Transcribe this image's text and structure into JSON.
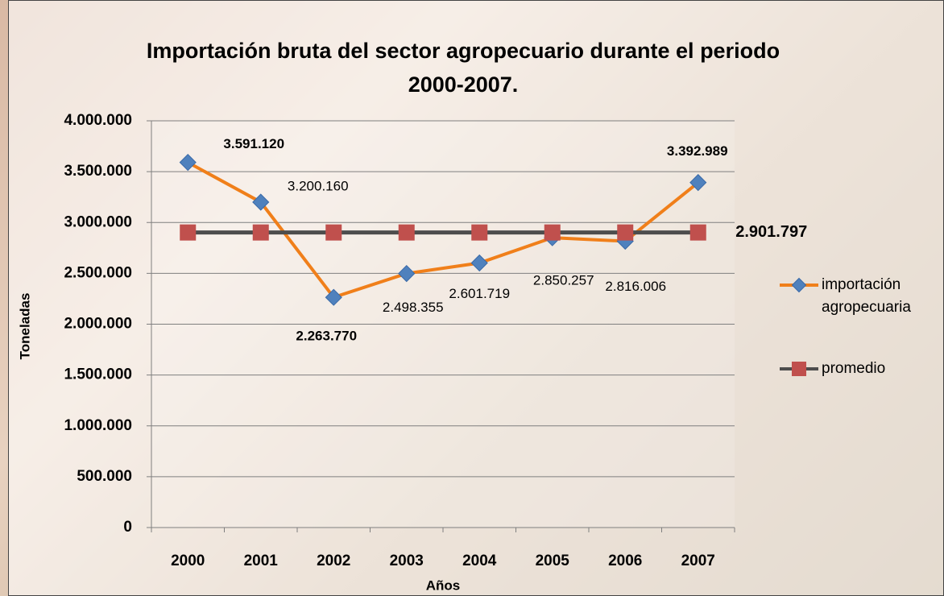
{
  "chart_data": {
    "type": "line",
    "title": "Importación bruta del sector agropecuario durante el periodo 2000-2007.",
    "x_label": "Años",
    "y_label": "Toneladas",
    "categories": [
      "2000",
      "2001",
      "2002",
      "2003",
      "2004",
      "2005",
      "2006",
      "2007"
    ],
    "series": [
      {
        "name": "importación agropecuaria",
        "color": "#f07f1a",
        "marker_color": "#4f81bd",
        "values": [
          3591120,
          3200160,
          2263770,
          2498355,
          2601719,
          2850257,
          2816006,
          3392989
        ],
        "value_labels": [
          "3.591.120",
          "3.200.160",
          "2.263.770",
          "2.498.355",
          "2.601.719",
          "2.850.257",
          "2.816.006",
          "3.392.989"
        ]
      },
      {
        "name": "promedio",
        "color": "#4d4d4d",
        "marker_color": "#c0504d",
        "values": [
          2901797,
          2901797,
          2901797,
          2901797,
          2901797,
          2901797,
          2901797,
          2901797
        ],
        "value_labels": [
          null,
          null,
          null,
          null,
          null,
          null,
          null,
          "2.901.797"
        ]
      }
    ],
    "ylim": [
      0,
      4000000
    ],
    "yticks": [
      0,
      {
        "value": 500000,
        "label": "500.000"
      },
      {
        "value": 1000000,
        "label": "1.000.000"
      },
      {
        "value": 1500000,
        "label": "1.500.000"
      },
      {
        "value": 2000000,
        "label": "2.000.000"
      },
      {
        "value": 2500000,
        "label": "2.500.000"
      },
      {
        "value": 3000000,
        "label": "3.000.000"
      },
      {
        "value": 3500000,
        "label": "3.500.000"
      },
      {
        "value": 4000000,
        "label": "4.000.000"
      }
    ],
    "grid": true
  }
}
